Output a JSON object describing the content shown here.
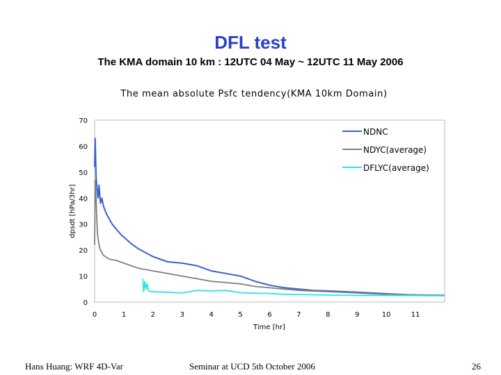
{
  "slide": {
    "title": "DFL test",
    "subtitle": "The KMA domain 10 km : 12UTC 04 May ~ 12UTC 11 May 2006"
  },
  "footer": {
    "left": "Hans Huang: WRF 4D-Var",
    "center": "Seminar at UCD  5th October 2006",
    "page_number": "26"
  },
  "chart_data": {
    "type": "line",
    "title": "The mean absolute Psfc tendency(KMA 10km Domain)",
    "xlabel": "Time [hr]",
    "ylabel": "dpsdt [hPa/3hr]",
    "xlim": [
      0,
      12
    ],
    "ylim": [
      0,
      70
    ],
    "xticks": [
      "0",
      "1",
      "2",
      "3",
      "4",
      "5",
      "6",
      "7",
      "8",
      "9",
      "10",
      "11"
    ],
    "yticks": [
      "0",
      "10",
      "20",
      "30",
      "40",
      "50",
      "60",
      "70"
    ],
    "grid": false,
    "legend_position": "top-right",
    "series": [
      {
        "name": "NDNC",
        "color": "#3a5fcd",
        "x": [
          0,
          0.02,
          0.05,
          0.08,
          0.12,
          0.15,
          0.2,
          0.25,
          0.3,
          0.4,
          0.5,
          0.6,
          0.75,
          0.9,
          1.0,
          1.25,
          1.5,
          1.75,
          2.0,
          2.5,
          3.0,
          3.5,
          4.0,
          4.5,
          5.0,
          5.5,
          6.0,
          6.5,
          7.0,
          7.5,
          8.0,
          9.0,
          10.0,
          11.0,
          12.0
        ],
        "y": [
          52,
          63,
          48,
          44,
          40,
          45,
          38,
          40,
          37,
          34,
          32,
          30,
          28,
          26,
          25,
          22.5,
          20.5,
          19,
          17.5,
          15.5,
          15,
          14,
          12,
          11,
          10,
          8,
          6.5,
          5.5,
          5,
          4.5,
          4.3,
          3.8,
          3.2,
          2.7,
          2.6
        ]
      },
      {
        "name": "NDYC(average)",
        "color": "#7f7f7f",
        "x": [
          0,
          0.02,
          0.05,
          0.08,
          0.1,
          0.15,
          0.2,
          0.3,
          0.5,
          0.75,
          1.0,
          1.25,
          1.5,
          2.0,
          2.5,
          3.0,
          3.5,
          4.0,
          4.5,
          5.0,
          5.5,
          6.0,
          6.5,
          7.0,
          8.0,
          9.0,
          10.0,
          11.0,
          12.0
        ],
        "y": [
          22,
          47,
          40,
          30,
          26,
          22,
          20,
          18,
          16.5,
          16,
          15,
          14,
          13,
          12,
          11,
          10,
          9,
          8,
          7.5,
          7,
          6,
          5.5,
          5,
          4.5,
          4,
          3.5,
          3,
          2.8,
          2.6
        ]
      },
      {
        "name": "DFLYC(average)",
        "color": "#27e4e8",
        "x": [
          1.65,
          1.68,
          1.72,
          1.76,
          1.8,
          1.85,
          1.9,
          2.0,
          2.5,
          3.0,
          3.5,
          4.0,
          4.5,
          5.0,
          5.5,
          6.0,
          6.5,
          7.0,
          7.5,
          8.0,
          9.0,
          10.0,
          11.0,
          12.0
        ],
        "y": [
          9,
          4,
          8,
          5,
          7,
          4.5,
          4,
          4,
          3.8,
          3.5,
          4.5,
          4.3,
          4.5,
          3.6,
          3.4,
          3.3,
          3.0,
          2.9,
          2.8,
          2.7,
          2.6,
          2.6,
          2.5,
          2.4
        ]
      }
    ]
  }
}
